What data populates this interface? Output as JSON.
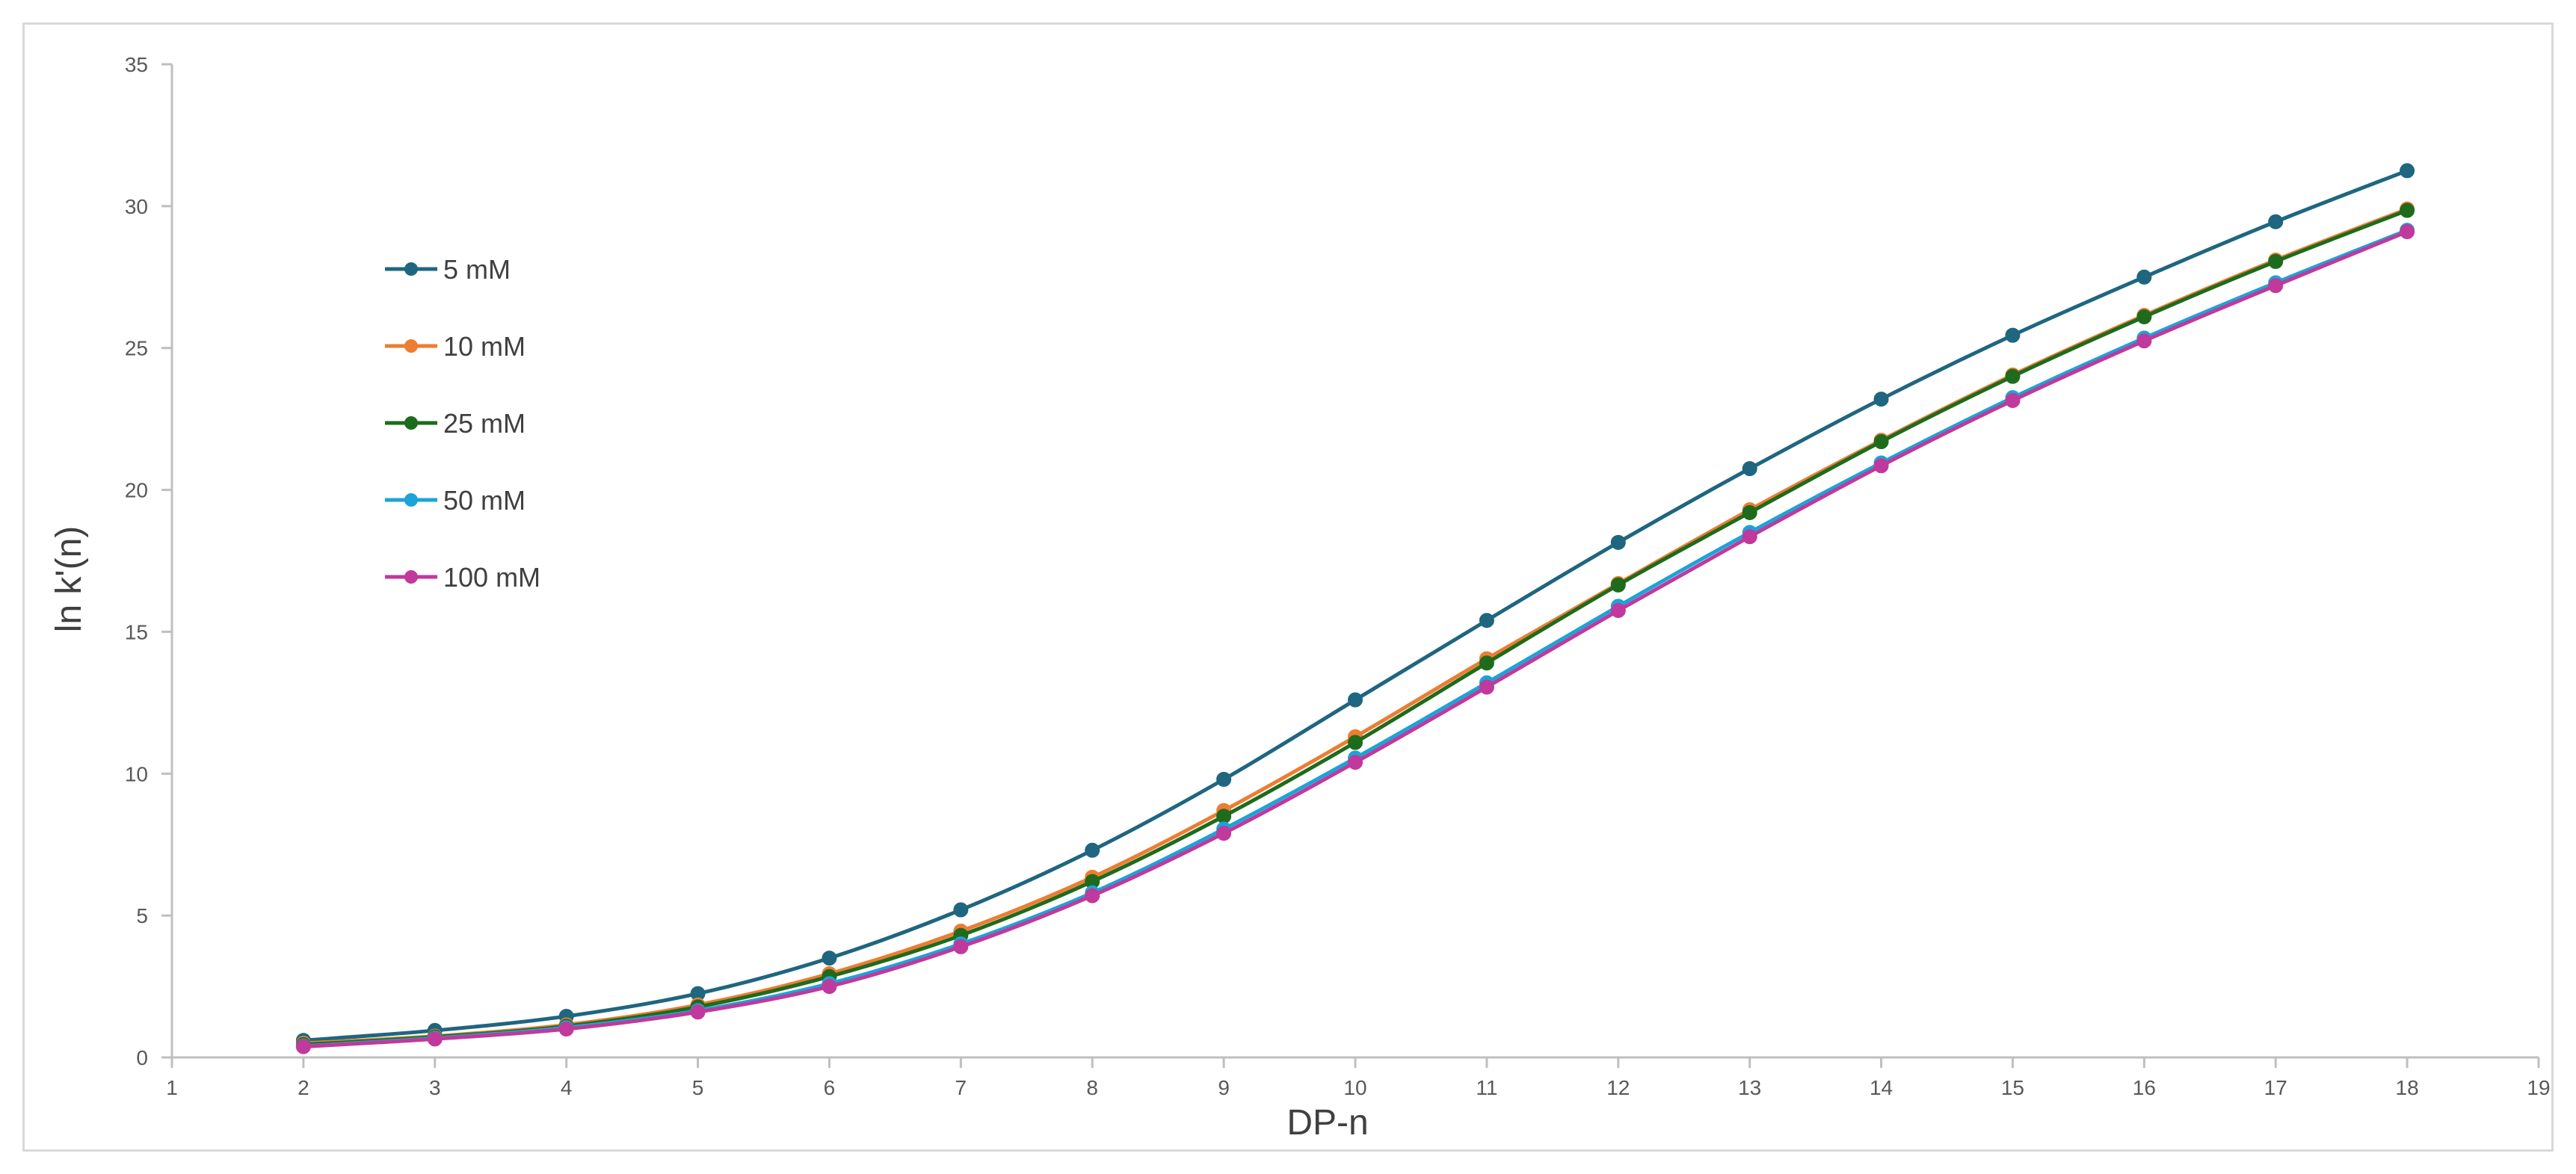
{
  "chart_data": {
    "type": "line",
    "title": "",
    "xlabel": "DP-n",
    "ylabel": "ln k'(n)",
    "xlim": [
      1,
      19
    ],
    "ylim": [
      0,
      35
    ],
    "xticks": [
      1,
      2,
      3,
      4,
      5,
      6,
      7,
      8,
      9,
      10,
      11,
      12,
      13,
      14,
      15,
      16,
      17,
      18,
      19
    ],
    "yticks": [
      0,
      5,
      10,
      15,
      20,
      25,
      30,
      35
    ],
    "grid": false,
    "smooth": true,
    "markers": true,
    "legend_position": "upper-left-inside",
    "x": [
      2,
      3,
      4,
      5,
      6,
      7,
      8,
      9,
      10,
      11,
      12,
      13,
      14,
      15,
      16,
      17,
      18
    ],
    "series": [
      {
        "name": "5 mM",
        "color": "#1f6680",
        "values": [
          0.6,
          0.95,
          1.45,
          2.25,
          3.5,
          5.2,
          7.3,
          9.8,
          12.6,
          15.4,
          18.15,
          20.75,
          23.2,
          25.45,
          27.5,
          29.45,
          31.25
        ]
      },
      {
        "name": "10 mM",
        "color": "#ed7d31",
        "values": [
          0.5,
          0.75,
          1.15,
          1.85,
          2.95,
          4.45,
          6.35,
          8.7,
          11.3,
          14.05,
          16.7,
          19.3,
          21.75,
          24.05,
          26.15,
          28.1,
          29.9
        ]
      },
      {
        "name": "25 mM",
        "color": "#1e6b1e",
        "values": [
          0.45,
          0.72,
          1.1,
          1.78,
          2.85,
          4.3,
          6.2,
          8.5,
          11.1,
          13.9,
          16.65,
          19.2,
          21.7,
          24.0,
          26.1,
          28.05,
          29.85
        ]
      },
      {
        "name": "50 mM",
        "color": "#1ca3d9",
        "values": [
          0.4,
          0.68,
          1.05,
          1.65,
          2.6,
          4.0,
          5.8,
          8.05,
          10.55,
          13.2,
          15.9,
          18.5,
          20.95,
          23.25,
          25.35,
          27.3,
          29.15
        ]
      },
      {
        "name": "100 mM",
        "color": "#c0399c",
        "values": [
          0.38,
          0.65,
          1.0,
          1.6,
          2.5,
          3.9,
          5.7,
          7.9,
          10.4,
          13.05,
          15.75,
          18.35,
          20.85,
          23.15,
          25.25,
          27.2,
          29.1
        ]
      }
    ]
  }
}
